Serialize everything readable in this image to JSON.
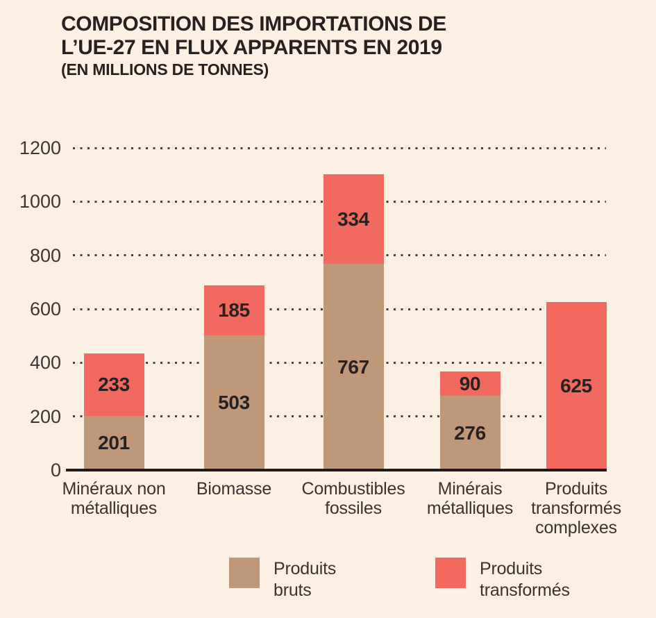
{
  "header": {
    "title_lines": [
      "COMPOSITION DES IMPORTATIONS DE",
      "L’UE-27 EN FLUX APPARENTS EN 2019"
    ],
    "subtitle": "(EN MILLIONS DE TONNES)"
  },
  "chart_data": {
    "type": "bar",
    "stacked": true,
    "title": "COMPOSITION DES IMPORTATIONS DE L’UE-27 EN FLUX APPARENTS EN 2019",
    "subtitle": "(EN MILLIONS DE TONNES)",
    "unit": "millions de tonnes",
    "categories": [
      "Minéraux non métalliques",
      "Biomasse",
      "Combustibles fossiles",
      "Minérais métalliques",
      "Produits transformés complexes"
    ],
    "categories_wrapped": [
      "Minéraux non\nmétalliques",
      "Biomasse",
      "Combustibles\nfossiles",
      "Minérais\nmétalliques",
      "Produits\ntransformés\ncomplexes"
    ],
    "series": [
      {
        "name": "Produits bruts",
        "color": "#bf9779",
        "values": [
          201,
          503,
          767,
          276,
          null
        ]
      },
      {
        "name": "Produits transformés",
        "color": "#f26a5f",
        "values": [
          233,
          185,
          334,
          90,
          625
        ]
      }
    ],
    "yticks": [
      0,
      200,
      400,
      600,
      800,
      1000,
      1200
    ],
    "ylim": [
      0,
      1200
    ],
    "grid": "horizontal-dotted",
    "legend_position": "bottom"
  },
  "legend": {
    "items": [
      {
        "label": "Produits bruts",
        "label_wrapped": "Produits\nbruts",
        "color": "#bf9779"
      },
      {
        "label": "Produits transformés",
        "label_wrapped": "Produits\ntransformés",
        "color": "#f26a5f"
      }
    ]
  },
  "colors": {
    "background": "#fcefe4",
    "produits_bruts": "#bf9779",
    "produits_transformes": "#f26a5f",
    "value_text": "#272120",
    "axis_text": "#3c3733",
    "axis_line": "#211c18",
    "gridline_dots": "#46403a"
  }
}
